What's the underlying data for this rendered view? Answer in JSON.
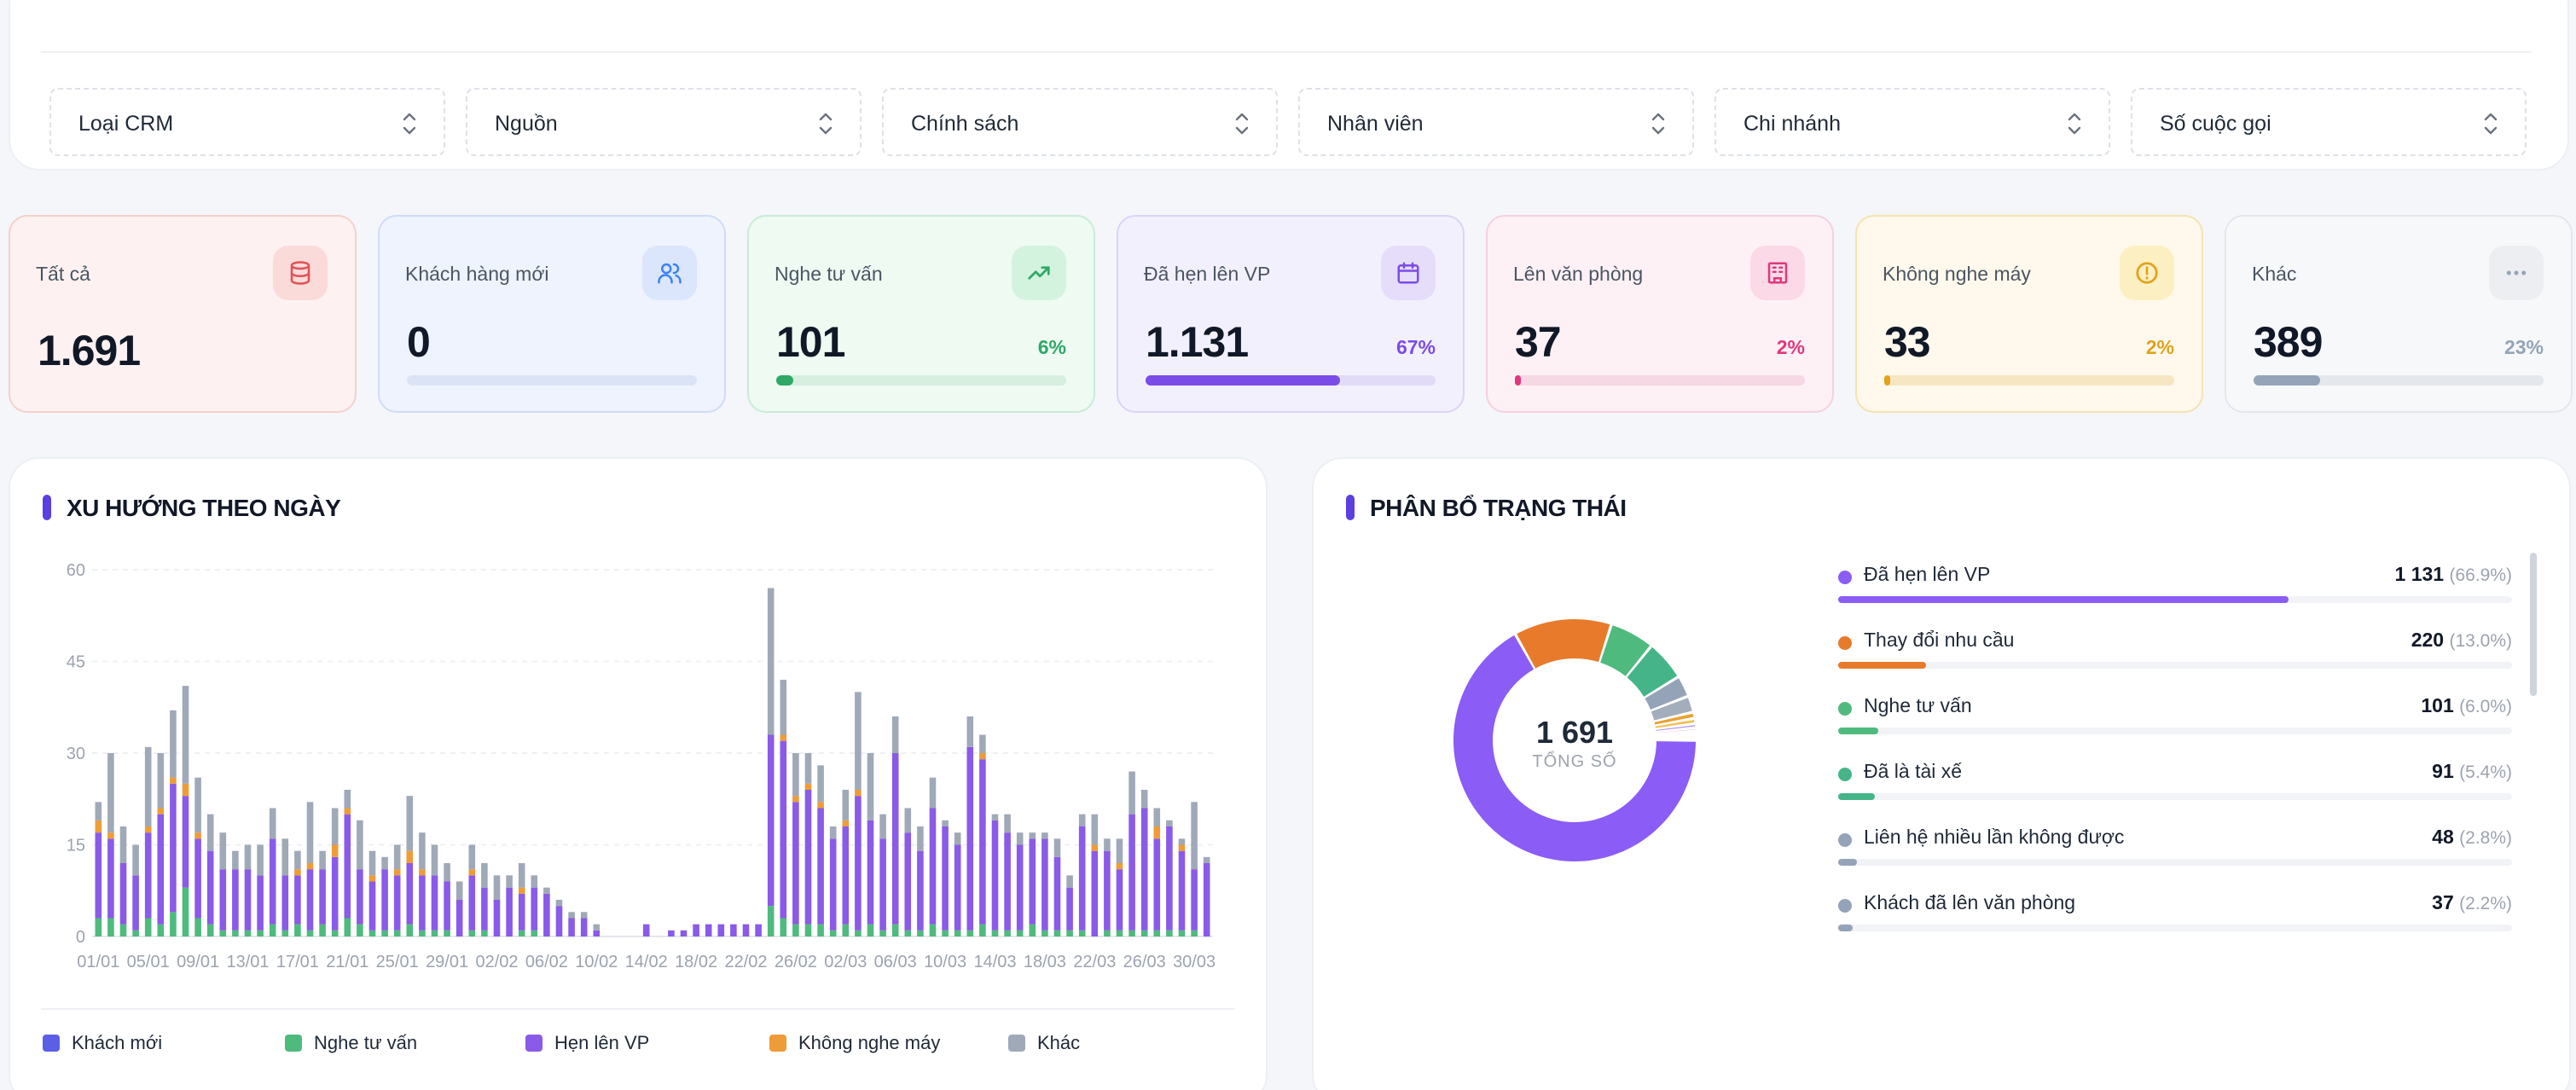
{
  "filters": [
    {
      "label": "Loại CRM"
    },
    {
      "label": "Nguồn"
    },
    {
      "label": "Chính sách"
    },
    {
      "label": "Nhân viên"
    },
    {
      "label": "Chi nhánh"
    },
    {
      "label": "Số cuộc gọi"
    }
  ],
  "stats": [
    {
      "key": "all",
      "title": "Tất cả",
      "value": "1.691",
      "percent": "",
      "progress": null,
      "icon": "database-icon",
      "colors": {
        "bg": "#fdf2f1",
        "border": "#f6cfcb",
        "accent": "#e05252",
        "icon_bg": "#fbdada"
      }
    },
    {
      "key": "new",
      "title": "Khách hàng mới",
      "value": "0",
      "percent": "",
      "progress": 0,
      "icon": "users-icon",
      "colors": {
        "bg": "#eef3fd",
        "border": "#cfdcf7",
        "accent": "#3b82f6",
        "icon_bg": "#dbe6fc",
        "track": "#dbe4f6"
      }
    },
    {
      "key": "consult",
      "title": "Nghe tư vấn",
      "value": "101",
      "percent": "6%",
      "progress": 0.06,
      "icon": "trending-up-icon",
      "colors": {
        "bg": "#eefaf2",
        "border": "#c9ecd6",
        "accent": "#2fa866",
        "icon_bg": "#d4f3df",
        "track": "#d6efdf"
      }
    },
    {
      "key": "appointment",
      "title": "Đã hẹn lên VP",
      "value": "1.131",
      "percent": "67%",
      "progress": 0.67,
      "icon": "calendar-icon",
      "colors": {
        "bg": "#f3f0fd",
        "border": "#dcd3f7",
        "accent": "#7c4ce8",
        "icon_bg": "#e6ddfb",
        "track": "#e2dbf8"
      }
    },
    {
      "key": "office",
      "title": "Lên văn phòng",
      "value": "37",
      "percent": "2%",
      "progress": 0.02,
      "icon": "building-icon",
      "colors": {
        "bg": "#fdf1f6",
        "border": "#f5d0e0",
        "accent": "#e0387c",
        "icon_bg": "#fbd9e7",
        "track": "#f6d7e4"
      }
    },
    {
      "key": "noanswer",
      "title": "Không nghe máy",
      "value": "33",
      "percent": "2%",
      "progress": 0.02,
      "icon": "alert-circle-icon",
      "colors": {
        "bg": "#fef9ec",
        "border": "#f5e2b0",
        "accent": "#e2a21b",
        "icon_bg": "#fcefc2",
        "track": "#f6e6c2"
      }
    },
    {
      "key": "other",
      "title": "Khác",
      "value": "389",
      "percent": "23%",
      "progress": 0.23,
      "icon": "more-icon",
      "colors": {
        "bg": "#f7f8fa",
        "border": "#e3e6ec",
        "accent": "#94a3b8",
        "icon_bg": "#eceef2",
        "track": "#e4e7ec"
      }
    }
  ],
  "trend": {
    "title": "XU HƯỚNG THEO NGÀY",
    "legend": [
      {
        "name": "Khách mới",
        "color": "#5b5fe6"
      },
      {
        "name": "Nghe tư vấn",
        "color": "#4fba7e"
      },
      {
        "name": "Hẹn lên VP",
        "color": "#8a5ae8"
      },
      {
        "name": "Không nghe máy",
        "color": "#ee9c38"
      },
      {
        "name": "Khác",
        "color": "#a0a9b8"
      }
    ]
  },
  "chart_data": {
    "type": "bar",
    "stacked": true,
    "ylim": [
      0,
      60
    ],
    "yticks": [
      0,
      15,
      30,
      45,
      60
    ],
    "grid": true,
    "xtick_labels": [
      "01/01",
      "05/01",
      "09/01",
      "13/01",
      "17/01",
      "21/01",
      "25/01",
      "29/01",
      "02/02",
      "06/02",
      "10/02",
      "14/02",
      "18/02",
      "22/02",
      "26/02",
      "02/03",
      "06/03",
      "10/03",
      "14/03",
      "18/03",
      "22/03",
      "26/03",
      "30/03"
    ],
    "series": [
      {
        "name": "Khách mới",
        "color": "#5b5fe6",
        "values": [
          0,
          0,
          0,
          0,
          0,
          0,
          0,
          0,
          0,
          0,
          0,
          0,
          0,
          0,
          0,
          0,
          0,
          0,
          0,
          0,
          0,
          0,
          0,
          0,
          0,
          0,
          0,
          0,
          0,
          0,
          0,
          0,
          0,
          0,
          0,
          0,
          0,
          0,
          0,
          0,
          0,
          0,
          0,
          0,
          0,
          0,
          0,
          0,
          0,
          0,
          0,
          0,
          0,
          0,
          0,
          0,
          0,
          0,
          0,
          0,
          0,
          0,
          0,
          0,
          0,
          0,
          0,
          0,
          0,
          0,
          0,
          0,
          0,
          0,
          0,
          0,
          0,
          0,
          0,
          0,
          0,
          0,
          0,
          0,
          0,
          0,
          0,
          0,
          0,
          0
        ]
      },
      {
        "name": "Nghe tư vấn",
        "color": "#4fba7e",
        "values": [
          3,
          3,
          2,
          1,
          3,
          2,
          4,
          8,
          3,
          2,
          1,
          1,
          1,
          1,
          2,
          1,
          2,
          1,
          2,
          1,
          3,
          2,
          1,
          1,
          1,
          2,
          1,
          1,
          1,
          0,
          1,
          1,
          0,
          0,
          1,
          1,
          0,
          0,
          0,
          0,
          0,
          0,
          0,
          0,
          0,
          0,
          0,
          0,
          0,
          0,
          0,
          0,
          0,
          0,
          5,
          3,
          2,
          2,
          2,
          1,
          2,
          1,
          2,
          1,
          2,
          1,
          1,
          2,
          1,
          1,
          1,
          2,
          1,
          1,
          1,
          2,
          1,
          1,
          1,
          1,
          0,
          1,
          1,
          1,
          1,
          1,
          1,
          1,
          1,
          0
        ]
      },
      {
        "name": "Hẹn lên VP",
        "color": "#8a5ae8",
        "values": [
          14,
          13,
          10,
          9,
          14,
          18,
          21,
          15,
          13,
          12,
          10,
          10,
          10,
          9,
          14,
          9,
          8,
          10,
          9,
          12,
          17,
          9,
          8,
          10,
          9,
          10,
          9,
          9,
          8,
          6,
          9,
          7,
          6,
          8,
          6,
          7,
          7,
          5,
          3,
          3,
          1,
          0,
          0,
          0,
          2,
          0,
          1,
          1,
          2,
          2,
          2,
          2,
          2,
          2,
          28,
          29,
          20,
          22,
          19,
          15,
          16,
          22,
          17,
          15,
          28,
          16,
          13,
          19,
          17,
          14,
          30,
          27,
          18,
          16,
          14,
          14,
          15,
          12,
          7,
          17,
          14,
          13,
          10,
          19,
          20,
          15,
          17,
          13,
          10,
          12
        ]
      },
      {
        "name": "Không nghe máy",
        "color": "#ee9c38",
        "values": [
          2,
          1,
          0,
          0,
          1,
          1,
          1,
          2,
          1,
          0,
          0,
          0,
          0,
          0,
          0,
          0,
          1,
          1,
          0,
          2,
          1,
          0,
          1,
          0,
          1,
          2,
          1,
          0,
          0,
          0,
          1,
          0,
          0,
          0,
          1,
          0,
          0,
          0,
          0,
          0,
          0,
          0,
          0,
          0,
          0,
          0,
          0,
          0,
          0,
          0,
          0,
          0,
          0,
          0,
          0,
          1,
          1,
          1,
          1,
          0,
          1,
          1,
          0,
          0,
          0,
          0,
          0,
          0,
          0,
          0,
          0,
          1,
          0,
          0,
          0,
          0,
          0,
          0,
          0,
          0,
          1,
          0,
          1,
          0,
          0,
          2,
          0,
          1,
          0,
          0
        ]
      },
      {
        "name": "Khác",
        "color": "#a0a9b8",
        "values": [
          3,
          13,
          6,
          5,
          13,
          9,
          11,
          16,
          9,
          6,
          6,
          3,
          4,
          5,
          5,
          6,
          3,
          10,
          3,
          6,
          3,
          8,
          4,
          2,
          4,
          9,
          6,
          5,
          3,
          3,
          4,
          4,
          4,
          2,
          4,
          2,
          1,
          1,
          1,
          1,
          1,
          0,
          0,
          0,
          0,
          0,
          0,
          0,
          0,
          0,
          0,
          0,
          0,
          0,
          24,
          9,
          7,
          5,
          6,
          2,
          5,
          16,
          11,
          4,
          6,
          4,
          4,
          5,
          1,
          2,
          5,
          3,
          1,
          3,
          2,
          1,
          1,
          3,
          2,
          2,
          5,
          2,
          4,
          7,
          3,
          3,
          1,
          1,
          11,
          1
        ]
      }
    ]
  },
  "distribution": {
    "title": "PHÂN BỔ TRẠNG THÁI",
    "total": "1 691",
    "total_label": "TỔNG SỐ",
    "items": [
      {
        "name": "Đã hẹn lên VP",
        "count": "1 131",
        "percent": "(66.9%)",
        "color": "#8b5cf6"
      },
      {
        "name": "Thay đổi nhu cầu",
        "count": "220",
        "percent": "(13.0%)",
        "color": "#e87a2c"
      },
      {
        "name": "Nghe tư vấn",
        "count": "101",
        "percent": "(6.0%)",
        "color": "#4fba7e"
      },
      {
        "name": "Đã là tài xế",
        "count": "91",
        "percent": "(5.4%)",
        "color": "#45b589"
      },
      {
        "name": "Liên hệ nhiều lần không được",
        "count": "48",
        "percent": "(2.8%)",
        "color": "#94a3b8"
      },
      {
        "name": "Khách đã lên văn phòng",
        "count": "37",
        "percent": "(2.2%)",
        "color": "#94a3b8"
      }
    ],
    "donut": [
      {
        "value": 1131,
        "color": "#8b5cf6"
      },
      {
        "value": 220,
        "color": "#e87a2c"
      },
      {
        "value": 101,
        "color": "#4fba7e"
      },
      {
        "value": 91,
        "color": "#45b589"
      },
      {
        "value": 48,
        "color": "#94a3b8"
      },
      {
        "value": 37,
        "color": "#a3adbc"
      },
      {
        "value": 14,
        "color": "#e8a030"
      },
      {
        "value": 12,
        "color": "#f0c050"
      },
      {
        "value": 9,
        "color": "#a78bfa"
      },
      {
        "value": 7,
        "color": "#f472b6"
      },
      {
        "value": 6,
        "color": "#60a5fa"
      },
      {
        "value": 5,
        "color": "#fb7185"
      },
      {
        "value": 4,
        "color": "#34d399"
      },
      {
        "value": 3,
        "color": "#c084fc"
      },
      {
        "value": 3,
        "color": "#fbbf24"
      }
    ]
  }
}
